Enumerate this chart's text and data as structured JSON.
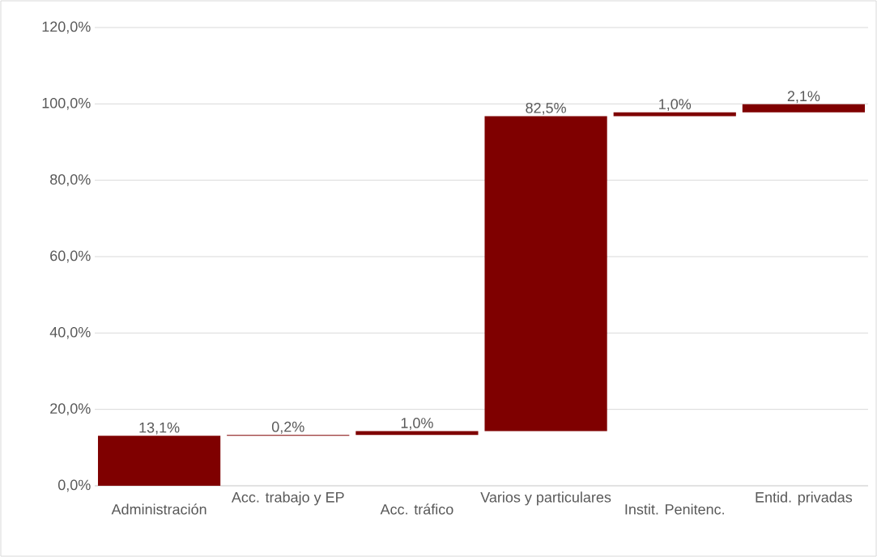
{
  "chart_data": {
    "type": "bar",
    "categories": [
      "Administración",
      "Acc. trabajo y EP",
      "Acc. tráfico",
      "Varios y particulares",
      "Instit. Penitenc.",
      "Entid. privadas"
    ],
    "values": [
      13.1,
      0.2,
      1.0,
      82.5,
      1.0,
      2.1
    ],
    "base": [
      0,
      13.1,
      13.3,
      14.3,
      96.8,
      97.8
    ],
    "color": "#7f0000",
    "value_labels": [
      "13,1%",
      "0,2%",
      "1,0%",
      "82,5%",
      "1,0%",
      "2,1%"
    ],
    "ylim": [
      0,
      120
    ],
    "yticks": [
      {
        "value": 0,
        "label": "0,0%"
      },
      {
        "value": 20,
        "label": "20,0%"
      },
      {
        "value": 40,
        "label": "40,0%"
      },
      {
        "value": 60,
        "label": "60,0%"
      },
      {
        "value": 80,
        "label": "80,0%"
      },
      {
        "value": 100,
        "label": "100,0%"
      },
      {
        "value": 120,
        "label": "120,0%"
      }
    ],
    "grid": "y"
  }
}
